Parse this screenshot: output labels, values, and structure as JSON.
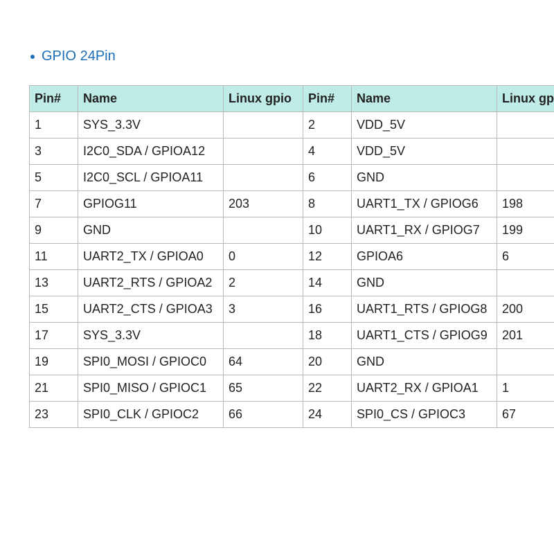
{
  "title": {
    "text": "GPIO 24Pin",
    "color": "#1b6fb8",
    "bullet_color": "#1b6fb8",
    "fontsize": 20
  },
  "table": {
    "border_color": "#b8b8b8",
    "header_bg": "#c0ece7",
    "header_text_color": "#222222",
    "cell_text_color": "#222222",
    "fontsize": 18,
    "columns": [
      "Pin#",
      "Name",
      "Linux gpio",
      "Pin#",
      "Name",
      "Linux gpio"
    ],
    "col_classes": [
      "col-pin",
      "col-name",
      "col-gpio",
      "col-pin",
      "col-name",
      "col-gpio"
    ],
    "rows": [
      [
        "1",
        "SYS_3.3V",
        "",
        "2",
        "VDD_5V",
        ""
      ],
      [
        "3",
        "I2C0_SDA / GPIOA12",
        "",
        "4",
        "VDD_5V",
        ""
      ],
      [
        "5",
        "I2C0_SCL / GPIOA11",
        "",
        "6",
        "GND",
        ""
      ],
      [
        "7",
        "GPIOG11",
        "203",
        "8",
        "UART1_TX / GPIOG6",
        "198"
      ],
      [
        "9",
        "GND",
        "",
        "10",
        "UART1_RX / GPIOG7",
        "199"
      ],
      [
        "11",
        "UART2_TX / GPIOA0",
        "0",
        "12",
        "GPIOA6",
        "6"
      ],
      [
        "13",
        "UART2_RTS / GPIOA2",
        "2",
        "14",
        "GND",
        ""
      ],
      [
        "15",
        "UART2_CTS / GPIOA3",
        "3",
        "16",
        "UART1_RTS / GPIOG8",
        "200"
      ],
      [
        "17",
        "SYS_3.3V",
        "",
        "18",
        "UART1_CTS / GPIOG9",
        "201"
      ],
      [
        "19",
        "SPI0_MOSI / GPIOC0",
        "64",
        "20",
        "GND",
        ""
      ],
      [
        "21",
        "SPI0_MISO / GPIOC1",
        "65",
        "22",
        "UART2_RX / GPIOA1",
        "1"
      ],
      [
        "23",
        "SPI0_CLK / GPIOC2",
        "66",
        "24",
        "SPI0_CS / GPIOC3",
        "67"
      ]
    ]
  }
}
